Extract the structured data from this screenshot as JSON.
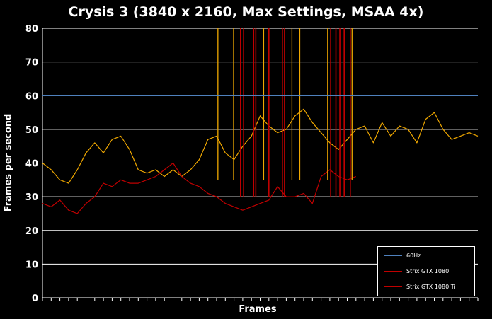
{
  "chart_data": {
    "type": "line",
    "title": "Crysis 3 (3840 x 2160, Max Settings, MSAA 4x)",
    "xlabel": "Frames",
    "ylabel": "Frames per second",
    "ylim": [
      0,
      80
    ],
    "yticks": [
      0,
      10,
      20,
      30,
      40,
      50,
      60,
      70,
      80
    ],
    "grid": true,
    "legend_position": "bottom-right",
    "series": [
      {
        "name": "60Hz",
        "color": "#4f81bd",
        "x": [
          0,
          100
        ],
        "y": [
          60,
          60
        ]
      },
      {
        "name": "Strix GTX 1080",
        "color": "#c00000",
        "x": [
          0,
          2,
          4,
          6,
          8,
          10,
          12,
          14,
          16,
          18,
          20,
          22,
          24,
          26,
          28,
          30,
          32,
          34,
          36,
          38,
          40,
          42,
          44,
          46,
          48,
          50,
          52,
          54,
          56,
          58,
          60,
          62,
          64,
          66,
          68,
          70,
          72
        ],
        "y": [
          28,
          27,
          29,
          26,
          25,
          28,
          30,
          34,
          33,
          35,
          34,
          34,
          35,
          36,
          38,
          40,
          36,
          34,
          33,
          31,
          30,
          28,
          27,
          26,
          27,
          28,
          29,
          33,
          30,
          30,
          31,
          28,
          36,
          38,
          36,
          35,
          36
        ]
      },
      {
        "name": "Strix GTX 1080 Ti",
        "color": "#f0a800",
        "x": [
          0,
          2,
          4,
          6,
          8,
          10,
          12,
          14,
          16,
          18,
          20,
          22,
          24,
          26,
          28,
          30,
          32,
          34,
          36,
          38,
          40,
          42,
          44,
          46,
          48,
          50,
          52,
          54,
          56,
          58,
          60,
          62,
          64,
          66,
          68,
          70,
          72,
          74,
          76,
          78,
          80,
          82,
          84,
          86,
          88,
          90,
          92,
          94,
          96,
          98,
          100
        ],
        "y": [
          40,
          38,
          35,
          34,
          38,
          43,
          46,
          43,
          47,
          48,
          44,
          38,
          37,
          38,
          36,
          38,
          36,
          38,
          41,
          47,
          48,
          43,
          41,
          45,
          48,
          54,
          51,
          49,
          50,
          54,
          56,
          52,
          49,
          46,
          44,
          47,
          50,
          51,
          46,
          52,
          48,
          51,
          50,
          46,
          53,
          55,
          50,
          47,
          48,
          49,
          48
        ]
      }
    ],
    "spikes": {
      "red_x": [
        45.5,
        46.2,
        48.5,
        49.0,
        52.0,
        55.1,
        55.6,
        66.2,
        67.4,
        68.3,
        69.3,
        70.7
      ],
      "gold_x": [
        40.3,
        43.9,
        50.8,
        57.3,
        59.1,
        65.5,
        71.1
      ]
    }
  }
}
